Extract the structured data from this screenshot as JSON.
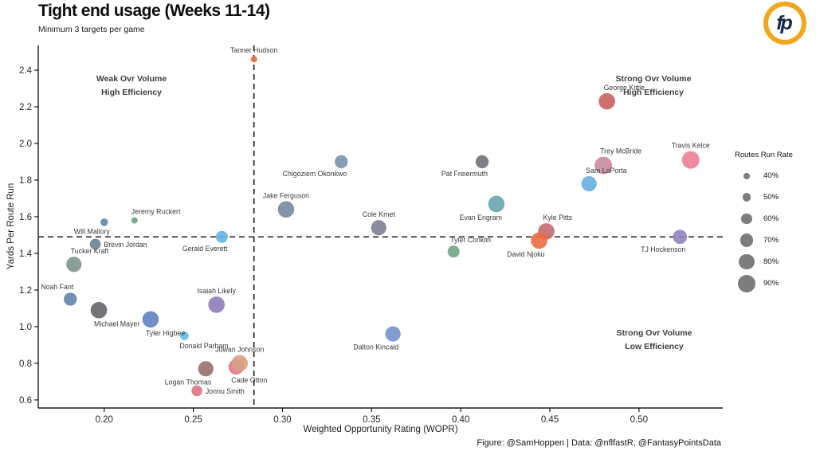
{
  "logo": {
    "text": "fp",
    "ring_color": "#f0a71c",
    "text_color": "#15294d"
  },
  "footer": {
    "credit": "Figure: @SamHoppen | Data: @nflfastR, @FantasyPointsData"
  },
  "chart_data": {
    "type": "scatter",
    "title": "Tight end usage (Weeks 11-14)",
    "subtitle": "Minimum 3 targets per game",
    "xlabel": "Weighted Opportunity Rating (WOPR)",
    "ylabel": "Yards Per Route Run",
    "xlim": [
      0.163,
      0.547
    ],
    "ylim": [
      0.556,
      2.535
    ],
    "x_ticks": [
      0.2,
      0.25,
      0.3,
      0.35,
      0.4,
      0.45,
      0.5
    ],
    "y_ticks": [
      0.6,
      0.8,
      1.0,
      1.2,
      1.4,
      1.6,
      1.8,
      2.0,
      2.2,
      2.4
    ],
    "grid": false,
    "ref_lines": {
      "x": 0.284,
      "y": 1.49
    },
    "quadrant_labels": [
      {
        "lines": [
          "Weak Ovr Volume",
          "High Efficiency"
        ]
      },
      {
        "lines": [
          "Strong Ovr Volume",
          "High Efficiency"
        ]
      },
      {
        "lines": [
          "Strong Ovr Volume",
          "Low Efficiency"
        ]
      }
    ],
    "legend": {
      "title": "Routes Run Rate",
      "position": "right",
      "circle_color": "#7d7d7d",
      "items": [
        {
          "pct": 40,
          "label": "40%"
        },
        {
          "pct": 50,
          "label": "50%"
        },
        {
          "pct": 60,
          "label": "60%"
        },
        {
          "pct": 70,
          "label": "70%"
        },
        {
          "pct": 80,
          "label": "80%"
        },
        {
          "pct": 90,
          "label": "90%"
        }
      ]
    },
    "points": [
      {
        "name": "Tanner Hudson",
        "wopr": 0.284,
        "yprr": 2.46,
        "routes_pct": 40,
        "color": "#ed6a45",
        "label_side": "above"
      },
      {
        "name": "Will Mallory",
        "wopr": 0.2,
        "yprr": 1.57,
        "routes_pct": 45,
        "color": "#5b84ae",
        "label_side": "below-left"
      },
      {
        "name": "Jeremy Ruckert",
        "wopr": 0.217,
        "yprr": 1.58,
        "routes_pct": 40,
        "color": "#69a181",
        "label_side": "above-right"
      },
      {
        "name": "Brevin Jordan",
        "wopr": 0.195,
        "yprr": 1.45,
        "routes_pct": 60,
        "color": "#6c8294",
        "label_side": "right"
      },
      {
        "name": "Tucker Kraft",
        "wopr": 0.183,
        "yprr": 1.34,
        "routes_pct": 80,
        "color": "#7e948c",
        "label_side": "above-right"
      },
      {
        "name": "Noah Fant",
        "wopr": 0.181,
        "yprr": 1.15,
        "routes_pct": 70,
        "color": "#5f83ad",
        "label_side": "above-left"
      },
      {
        "name": "Michael Mayer",
        "wopr": 0.197,
        "yprr": 1.09,
        "routes_pct": 85,
        "color": "#636569",
        "label_side": "below-right"
      },
      {
        "name": "Tyler Higbee",
        "wopr": 0.226,
        "yprr": 1.04,
        "routes_pct": 85,
        "color": "#5f83c4",
        "label_side": "below-right"
      },
      {
        "name": "Donald Parham",
        "wopr": 0.245,
        "yprr": 0.95,
        "routes_pct": 50,
        "color": "#5bc4e8",
        "label_side": "below-right"
      },
      {
        "name": "Isaiah Likely",
        "wopr": 0.263,
        "yprr": 1.12,
        "routes_pct": 85,
        "color": "#8f7cba",
        "label_side": "above"
      },
      {
        "name": "Jonnu Smith",
        "wopr": 0.252,
        "yprr": 0.65,
        "routes_pct": 60,
        "color": "#dd7285",
        "label_side": "right"
      },
      {
        "name": "Logan Thomas",
        "wopr": 0.257,
        "yprr": 0.77,
        "routes_pct": 80,
        "color": "#9a6f6c",
        "label_side": "below-left"
      },
      {
        "name": "Cade Otton",
        "wopr": 0.274,
        "yprr": 0.78,
        "routes_pct": 80,
        "color": "#e2788a",
        "label_side": "below-right"
      },
      {
        "name": "Juwan Johnson",
        "wopr": 0.276,
        "yprr": 0.8,
        "routes_pct": 85,
        "color": "#d8a083",
        "label_side": "above"
      },
      {
        "name": "Gerald Everett",
        "wopr": 0.266,
        "yprr": 1.49,
        "routes_pct": 65,
        "color": "#63b3e4",
        "label_side": "below-left"
      },
      {
        "name": "Jake Ferguson",
        "wopr": 0.302,
        "yprr": 1.64,
        "routes_pct": 85,
        "color": "#74889d",
        "label_side": "above"
      },
      {
        "name": "Chigoziem Okonkwo",
        "wopr": 0.333,
        "yprr": 1.9,
        "routes_pct": 70,
        "color": "#7b93ad",
        "label_side": "below-left"
      },
      {
        "name": "Cole Kmet",
        "wopr": 0.354,
        "yprr": 1.54,
        "routes_pct": 80,
        "color": "#7d8195",
        "label_side": "above"
      },
      {
        "name": "Dalton Kincaid",
        "wopr": 0.362,
        "yprr": 0.96,
        "routes_pct": 80,
        "color": "#7392cc",
        "label_side": "below-left"
      },
      {
        "name": "Tyler Conklin",
        "wopr": 0.396,
        "yprr": 1.41,
        "routes_pct": 65,
        "color": "#70a583",
        "label_side": "above-right"
      },
      {
        "name": "Pat Freiermuth",
        "wopr": 0.412,
        "yprr": 1.9,
        "routes_pct": 70,
        "color": "#6f7278",
        "label_side": "below-left"
      },
      {
        "name": "Evan Engram",
        "wopr": 0.42,
        "yprr": 1.67,
        "routes_pct": 85,
        "color": "#67a4b0",
        "label_side": "below-left"
      },
      {
        "name": "Kyle Pitts",
        "wopr": 0.448,
        "yprr": 1.52,
        "routes_pct": 85,
        "color": "#c76a70",
        "label_side": "above-right"
      },
      {
        "name": "David Njoku",
        "wopr": 0.444,
        "yprr": 1.47,
        "routes_pct": 85,
        "color": "#ef6a44",
        "label_side": "below-left"
      },
      {
        "name": "Sam LaPorta",
        "wopr": 0.472,
        "yprr": 1.78,
        "routes_pct": 80,
        "color": "#68aede",
        "label_side": "above-right"
      },
      {
        "name": "Trey McBride",
        "wopr": 0.48,
        "yprr": 1.88,
        "routes_pct": 90,
        "color": "#c88ba0",
        "label_side": "above-right"
      },
      {
        "name": "George Kittle",
        "wopr": 0.482,
        "yprr": 2.23,
        "routes_pct": 85,
        "color": "#c9605e",
        "label_side": "above-right"
      },
      {
        "name": "TJ Hockenson",
        "wopr": 0.523,
        "yprr": 1.49,
        "routes_pct": 75,
        "color": "#9184bf",
        "label_side": "below-left"
      },
      {
        "name": "Travis Kelce",
        "wopr": 0.529,
        "yprr": 1.91,
        "routes_pct": 90,
        "color": "#ec7f95",
        "label_side": "above"
      }
    ]
  }
}
